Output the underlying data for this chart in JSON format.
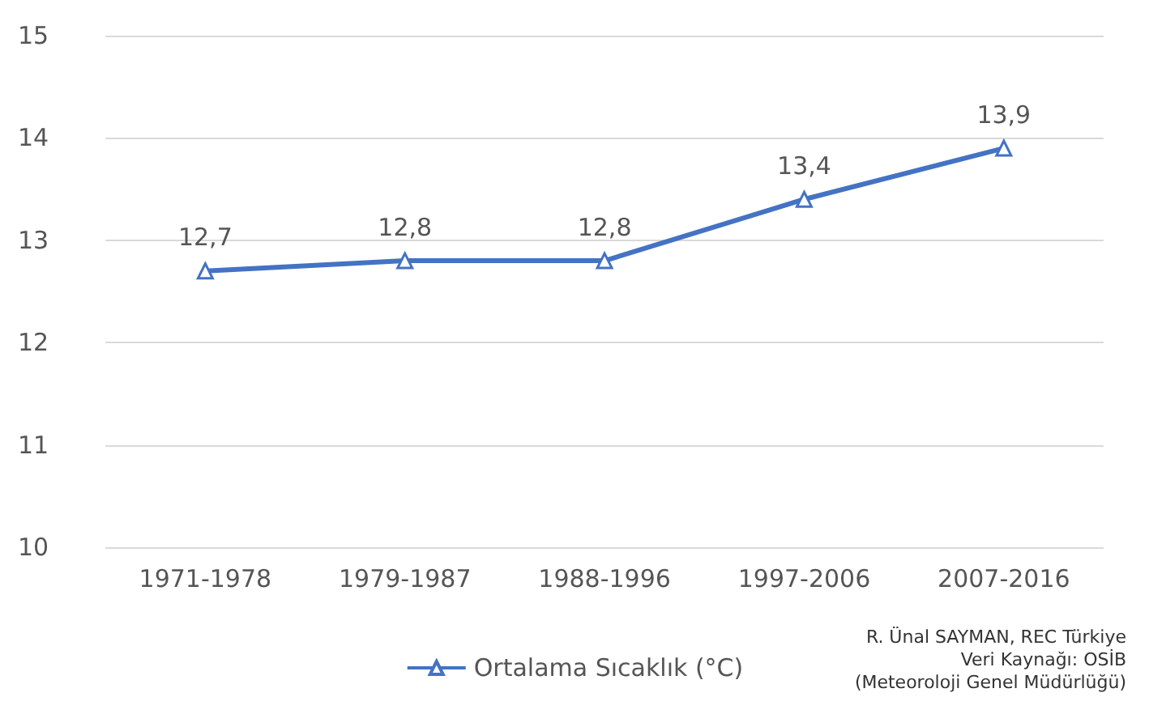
{
  "chart_data": {
    "type": "line",
    "categories": [
      "1971-1978",
      "1979-1987",
      "1988-1996",
      "1997-2006",
      "2007-2016"
    ],
    "series": [
      {
        "name": "Ortalama Sıcaklık (°C)",
        "color": "#4472c4",
        "values": [
          12.7,
          12.8,
          12.8,
          13.4,
          13.9
        ],
        "value_labels": [
          "12,7",
          "12,8",
          "12,8",
          "13,4",
          "13,9"
        ]
      }
    ],
    "ylim": [
      10,
      15
    ],
    "yticks": [
      10,
      11,
      12,
      13,
      14,
      15
    ],
    "grid": "y",
    "legend": "bottom",
    "marker": "triangle",
    "line_style": "solid",
    "annotations": [
      "R. Ünal SAYMAN, REC Türkiye",
      "Veri Kaynağı: OSİB",
      "(Meteoroloji Genel Müdürlüğü)"
    ]
  }
}
